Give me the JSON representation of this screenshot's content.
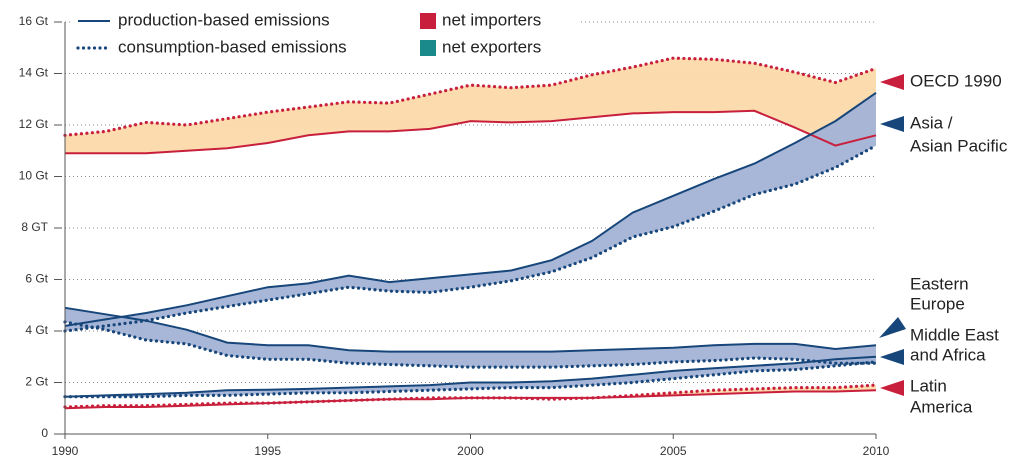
{
  "chart_data": {
    "type": "line",
    "x": [
      1990,
      1991,
      1992,
      1993,
      1994,
      1995,
      1996,
      1997,
      1998,
      1999,
      2000,
      2001,
      2002,
      2003,
      2004,
      2005,
      2006,
      2007,
      2008,
      2009,
      2010
    ],
    "xlim": [
      1990,
      2010
    ],
    "xticks": [
      1990,
      1995,
      2000,
      2005,
      2010
    ],
    "ylim": [
      0,
      16
    ],
    "yticks": [
      0,
      {
        "value": 2,
        "label": "2 Gt"
      },
      {
        "value": 4,
        "label": "4 Gt"
      },
      {
        "value": 6,
        "label": "6 Gt"
      },
      {
        "value": 8,
        "label": "8 GT"
      },
      {
        "value": 10,
        "label": "10 Gt"
      },
      {
        "value": 12,
        "label": "12 Gt"
      },
      {
        "value": 14,
        "label": "14 Gt"
      },
      {
        "value": 16,
        "label": "16 Gt"
      }
    ],
    "grid": true,
    "legend": {
      "production": "production-based emissions",
      "consumption": "consumption-based emissions",
      "importer": {
        "name": "net importers",
        "color": "#c8203c",
        "fill": "#fcd9ab"
      },
      "exporter": {
        "name": "net exporters",
        "color": "#1b8a8a",
        "fill": "#a3b3d6"
      }
    },
    "regions": [
      {
        "name": [
          "OECD 1990"
        ],
        "color": "#c8203c",
        "balance": "importer",
        "production": [
          10.9,
          10.9,
          10.9,
          11.0,
          11.1,
          11.3,
          11.6,
          11.75,
          11.75,
          11.85,
          12.15,
          12.1,
          12.15,
          12.3,
          12.45,
          12.5,
          12.5,
          12.55,
          11.9,
          11.2,
          11.6
        ],
        "consumption": [
          11.6,
          11.75,
          12.1,
          12.0,
          12.25,
          12.5,
          12.7,
          12.9,
          12.85,
          13.2,
          13.55,
          13.45,
          13.55,
          13.95,
          14.25,
          14.6,
          14.55,
          14.4,
          14.05,
          13.65,
          14.2
        ]
      },
      {
        "name": [
          "Asia /",
          "Asian Pacific"
        ],
        "color": "#17467a",
        "balance": "exporter",
        "production": [
          4.2,
          4.45,
          4.7,
          5.0,
          5.35,
          5.7,
          5.85,
          6.15,
          5.9,
          6.05,
          6.2,
          6.35,
          6.75,
          7.5,
          8.6,
          9.25,
          9.9,
          10.5,
          11.3,
          12.15,
          13.25
        ],
        "consumption": [
          4.0,
          4.2,
          4.4,
          4.7,
          4.95,
          5.2,
          5.45,
          5.7,
          5.55,
          5.5,
          5.7,
          5.95,
          6.3,
          6.85,
          7.65,
          8.05,
          8.65,
          9.3,
          9.7,
          10.35,
          11.2
        ]
      },
      {
        "name": [
          "Eastern",
          "Europe"
        ],
        "color": "#17467a",
        "balance": "exporter",
        "production": [
          4.9,
          4.65,
          4.4,
          4.05,
          3.55,
          3.45,
          3.45,
          3.25,
          3.2,
          3.2,
          3.2,
          3.2,
          3.2,
          3.25,
          3.3,
          3.35,
          3.45,
          3.5,
          3.5,
          3.3,
          3.45
        ],
        "consumption": [
          4.35,
          4.05,
          3.65,
          3.5,
          3.05,
          2.9,
          2.9,
          2.75,
          2.7,
          2.65,
          2.6,
          2.6,
          2.6,
          2.65,
          2.7,
          2.8,
          2.85,
          2.95,
          2.9,
          2.75,
          2.75
        ]
      },
      {
        "name": [
          "Middle East",
          "and Africa"
        ],
        "color": "#17467a",
        "balance": "exporter",
        "production": [
          1.45,
          1.5,
          1.55,
          1.6,
          1.7,
          1.72,
          1.75,
          1.8,
          1.85,
          1.9,
          2.0,
          2.0,
          2.05,
          2.15,
          2.3,
          2.45,
          2.55,
          2.65,
          2.75,
          2.9,
          3.0
        ],
        "consumption": [
          1.45,
          1.45,
          1.45,
          1.5,
          1.5,
          1.55,
          1.6,
          1.6,
          1.65,
          1.7,
          1.75,
          1.8,
          1.8,
          1.9,
          2.0,
          2.15,
          2.3,
          2.45,
          2.5,
          2.65,
          2.8
        ]
      },
      {
        "name": [
          "Latin",
          "America"
        ],
        "color": "#c8203c",
        "balance": "importer",
        "production": [
          1.0,
          1.05,
          1.05,
          1.1,
          1.15,
          1.2,
          1.25,
          1.3,
          1.35,
          1.35,
          1.4,
          1.4,
          1.4,
          1.4,
          1.45,
          1.5,
          1.55,
          1.6,
          1.65,
          1.65,
          1.7
        ],
        "consumption": [
          1.05,
          1.1,
          1.1,
          1.15,
          1.2,
          1.2,
          1.25,
          1.3,
          1.35,
          1.4,
          1.4,
          1.4,
          1.35,
          1.4,
          1.5,
          1.6,
          1.7,
          1.75,
          1.8,
          1.8,
          1.9
        ]
      }
    ]
  }
}
